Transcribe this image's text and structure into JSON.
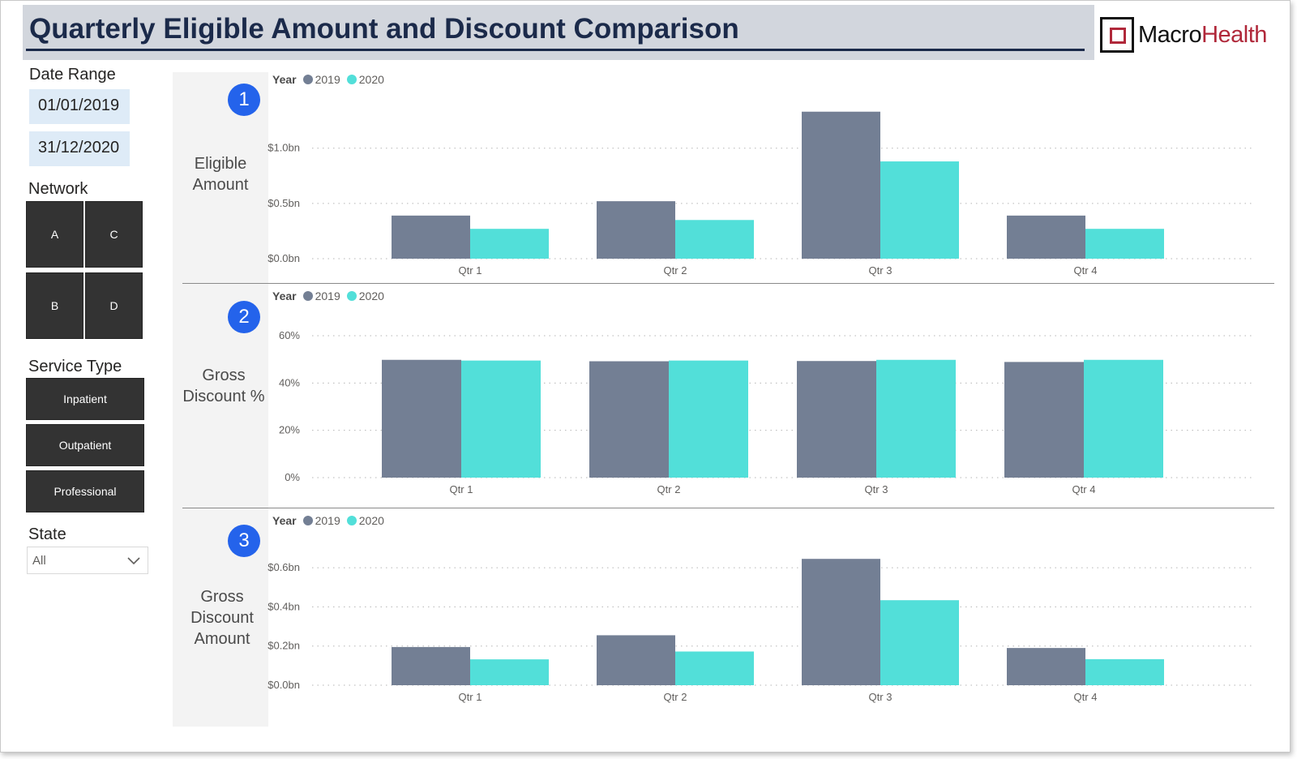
{
  "header": {
    "title": "Quarterly Eligible Amount and Discount Comparison",
    "logo_primary": "Macro",
    "logo_secondary": "Health"
  },
  "filters": {
    "date_range": {
      "label": "Date Range",
      "start": "01/01/2019",
      "end": "31/12/2020"
    },
    "network": {
      "label": "Network",
      "options": [
        "A",
        "C",
        "B",
        "D"
      ]
    },
    "service_type": {
      "label": "Service Type",
      "options": [
        "Inpatient",
        "Outpatient",
        "Professional"
      ]
    },
    "state": {
      "label": "State",
      "selected": "All"
    }
  },
  "colors": {
    "series_2019": "#737f94",
    "series_2020": "#52dfd9",
    "badge": "#2463eb",
    "title_text": "#1b2a4a",
    "logo_accent": "#b0283a"
  },
  "legend": {
    "title": "Year",
    "items": [
      "2019",
      "2020"
    ]
  },
  "panels": [
    {
      "number": "1",
      "label": "Eligible Amount"
    },
    {
      "number": "2",
      "label": "Gross Discount %"
    },
    {
      "number": "3",
      "label": "Gross Discount Amount"
    }
  ],
  "chart_data": [
    {
      "type": "bar",
      "categories": [
        "Qtr 1",
        "Qtr 2",
        "Qtr 3",
        "Qtr 4"
      ],
      "series": [
        {
          "name": "2019",
          "values": [
            0.39,
            0.52,
            1.33,
            0.39
          ]
        },
        {
          "name": "2020",
          "values": [
            0.27,
            0.35,
            0.88,
            0.27
          ]
        }
      ],
      "yticks": [
        "$0.0bn",
        "$0.5bn",
        "$1.0bn"
      ],
      "ytick_values": [
        0,
        0.5,
        1.0
      ],
      "ylim": [
        0,
        1.35
      ],
      "grid": true,
      "legend_position": "top-left"
    },
    {
      "type": "bar",
      "categories": [
        "Qtr 1",
        "Qtr 2",
        "Qtr 3",
        "Qtr 4"
      ],
      "series": [
        {
          "name": "2019",
          "values": [
            49.8,
            49.2,
            49.3,
            48.9
          ]
        },
        {
          "name": "2020",
          "values": [
            49.5,
            49.5,
            49.8,
            49.8
          ]
        }
      ],
      "yticks": [
        "0%",
        "20%",
        "40%",
        "60%"
      ],
      "ytick_values": [
        0,
        20,
        40,
        60
      ],
      "ylim": [
        0,
        60
      ],
      "grid": true,
      "legend_position": "top-left"
    },
    {
      "type": "bar",
      "categories": [
        "Qtr 1",
        "Qtr 2",
        "Qtr 3",
        "Qtr 4"
      ],
      "series": [
        {
          "name": "2019",
          "values": [
            0.195,
            0.255,
            0.645,
            0.19
          ]
        },
        {
          "name": "2020",
          "values": [
            0.132,
            0.172,
            0.434,
            0.133
          ]
        }
      ],
      "yticks": [
        "$0.0bn",
        "$0.2bn",
        "$0.4bn",
        "$0.6bn"
      ],
      "ytick_values": [
        0,
        0.2,
        0.4,
        0.6
      ],
      "ylim": [
        0,
        0.65
      ],
      "grid": true,
      "legend_position": "top-left"
    }
  ]
}
